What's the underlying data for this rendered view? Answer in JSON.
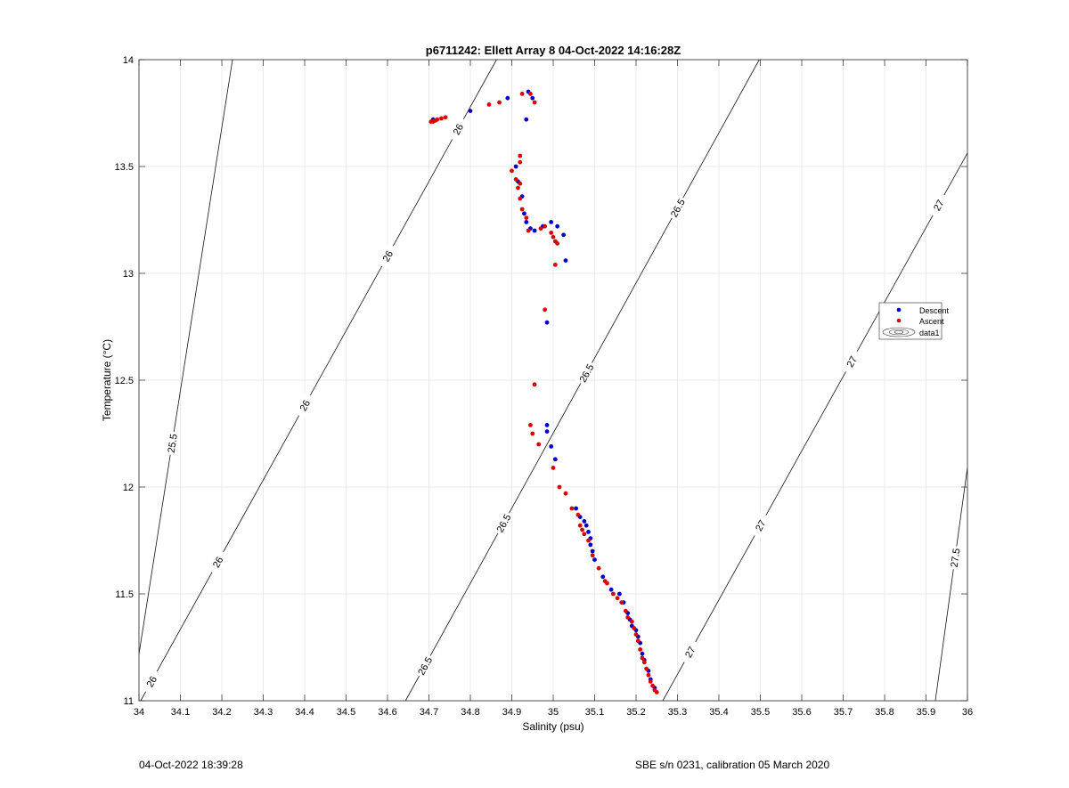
{
  "chart_data": {
    "type": "scatter",
    "title": "p6711242: Ellett Array 8 04-Oct-2022 14:16:28Z",
    "xlabel": "Salinity (psu)",
    "ylabel": "Temperature (°C)",
    "xlim": [
      34,
      36
    ],
    "ylim": [
      11,
      14
    ],
    "x_ticks": [
      34,
      34.1,
      34.2,
      34.3,
      34.4,
      34.5,
      34.6,
      34.7,
      34.8,
      34.9,
      35,
      35.1,
      35.2,
      35.3,
      35.4,
      35.5,
      35.6,
      35.7,
      35.8,
      35.9,
      36
    ],
    "y_ticks": [
      11,
      11.5,
      12,
      12.5,
      13,
      13.5,
      14
    ],
    "x_tick_labels": [
      "34",
      "34.1",
      "34.2",
      "34.3",
      "34.4",
      "34.5",
      "34.6",
      "34.7",
      "34.8",
      "34.9",
      "35",
      "35.1",
      "35.2",
      "35.3",
      "35.4",
      "35.5",
      "35.6",
      "35.7",
      "35.8",
      "35.9",
      "36"
    ],
    "y_tick_labels": [
      "11",
      "11.5",
      "12",
      "12.5",
      "13",
      "13.5",
      "14"
    ],
    "grid": true,
    "legend": {
      "placement": "right",
      "entries": [
        "Descent",
        "Ascent",
        "data1"
      ]
    },
    "series": [
      {
        "name": "Descent",
        "color": "#0000cc",
        "points": [
          [
            34.71,
            13.72
          ],
          [
            34.8,
            13.76
          ],
          [
            34.89,
            13.82
          ],
          [
            34.94,
            13.85
          ],
          [
            34.95,
            13.82
          ],
          [
            34.935,
            13.72
          ],
          [
            34.91,
            13.5
          ],
          [
            34.915,
            13.43
          ],
          [
            34.925,
            13.36
          ],
          [
            34.93,
            13.28
          ],
          [
            34.935,
            13.24
          ],
          [
            34.945,
            13.21
          ],
          [
            34.955,
            13.2
          ],
          [
            34.975,
            13.22
          ],
          [
            34.995,
            13.24
          ],
          [
            35.01,
            13.22
          ],
          [
            35.025,
            13.18
          ],
          [
            35.03,
            13.06
          ],
          [
            34.985,
            12.77
          ],
          [
            34.985,
            12.29
          ],
          [
            34.985,
            12.26
          ],
          [
            34.995,
            12.19
          ],
          [
            35.005,
            12.13
          ],
          [
            35.055,
            11.9
          ],
          [
            35.065,
            11.86
          ],
          [
            35.075,
            11.84
          ],
          [
            35.08,
            11.82
          ],
          [
            35.085,
            11.79
          ],
          [
            35.09,
            11.76
          ],
          [
            35.09,
            11.73
          ],
          [
            35.095,
            11.7
          ],
          [
            35.1,
            11.66
          ],
          [
            35.12,
            11.58
          ],
          [
            35.14,
            11.52
          ],
          [
            35.16,
            11.5
          ],
          [
            35.17,
            11.46
          ],
          [
            35.18,
            11.41
          ],
          [
            35.185,
            11.38
          ],
          [
            35.19,
            11.35
          ],
          [
            35.2,
            11.33
          ],
          [
            35.205,
            11.3
          ],
          [
            35.21,
            11.27
          ],
          [
            35.215,
            11.22
          ],
          [
            35.22,
            11.19
          ],
          [
            35.23,
            11.14
          ],
          [
            35.235,
            11.1
          ],
          [
            35.245,
            11.06
          ]
        ]
      },
      {
        "name": "Ascent",
        "color": "#dd0000",
        "points": [
          [
            34.705,
            13.71
          ],
          [
            34.71,
            13.71
          ],
          [
            34.715,
            13.715
          ],
          [
            34.72,
            13.72
          ],
          [
            34.73,
            13.725
          ],
          [
            34.74,
            13.73
          ],
          [
            34.845,
            13.79
          ],
          [
            34.87,
            13.8
          ],
          [
            34.925,
            13.84
          ],
          [
            34.945,
            13.84
          ],
          [
            34.955,
            13.8
          ],
          [
            34.92,
            13.55
          ],
          [
            34.9,
            13.48
          ],
          [
            34.92,
            13.52
          ],
          [
            34.91,
            13.44
          ],
          [
            34.92,
            13.42
          ],
          [
            34.915,
            13.4
          ],
          [
            34.92,
            13.35
          ],
          [
            34.925,
            13.3
          ],
          [
            34.935,
            13.26
          ],
          [
            34.94,
            13.2
          ],
          [
            34.97,
            13.21
          ],
          [
            34.98,
            13.22
          ],
          [
            34.995,
            13.19
          ],
          [
            35.0,
            13.17
          ],
          [
            35.005,
            13.15
          ],
          [
            35.01,
            13.14
          ],
          [
            35.005,
            13.04
          ],
          [
            34.98,
            12.83
          ],
          [
            34.955,
            12.48
          ],
          [
            34.945,
            12.29
          ],
          [
            34.95,
            12.25
          ],
          [
            34.965,
            12.2
          ],
          [
            35.0,
            12.09
          ],
          [
            35.015,
            12.0
          ],
          [
            35.03,
            11.97
          ],
          [
            35.045,
            11.9
          ],
          [
            35.06,
            11.87
          ],
          [
            35.065,
            11.82
          ],
          [
            35.07,
            11.8
          ],
          [
            35.075,
            11.78
          ],
          [
            35.085,
            11.75
          ],
          [
            35.095,
            11.68
          ],
          [
            35.11,
            11.62
          ],
          [
            35.125,
            11.56
          ],
          [
            35.13,
            11.55
          ],
          [
            35.145,
            11.5
          ],
          [
            35.155,
            11.48
          ],
          [
            35.165,
            11.46
          ],
          [
            35.175,
            11.42
          ],
          [
            35.18,
            11.39
          ],
          [
            35.19,
            11.37
          ],
          [
            35.195,
            11.34
          ],
          [
            35.2,
            11.31
          ],
          [
            35.205,
            11.28
          ],
          [
            35.21,
            11.24
          ],
          [
            35.215,
            11.2
          ],
          [
            35.22,
            11.18
          ],
          [
            35.225,
            11.15
          ],
          [
            35.23,
            11.12
          ],
          [
            35.235,
            11.09
          ],
          [
            35.24,
            11.07
          ],
          [
            35.245,
            11.05
          ],
          [
            35.25,
            11.04
          ]
        ]
      }
    ],
    "isopycnals": [
      {
        "label": "25.5",
        "s0": 33.9822,
        "s1": 34.2258,
        "label_s": 34.08
      },
      {
        "label": "26",
        "s0": 34.0042,
        "s1": 34.8632,
        "label_s": [
          34.03,
          34.19,
          34.4,
          34.6,
          34.77
        ]
      },
      {
        "label": "26.5",
        "s0": 34.6435,
        "s1": 35.4975,
        "label_s": [
          34.69,
          34.88,
          35.08,
          35.3,
          35.54
        ]
      },
      {
        "label": "27",
        "s0": 35.2645,
        "s1": 36.1255,
        "label_s": [
          35.33,
          35.5,
          35.72,
          35.93
        ]
      },
      {
        "label": "27.5",
        "s0": 35.9225,
        "s1": 36.1355,
        "label_s": [
          35.97
        ]
      }
    ]
  },
  "footer": {
    "left": "04-Oct-2022 18:39:28",
    "right": "SBE s/n 0231, calibration 05 March 2020"
  }
}
